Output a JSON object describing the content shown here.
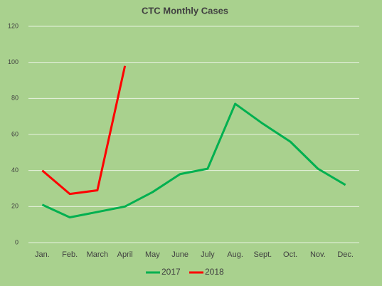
{
  "chart_data": {
    "type": "line",
    "title": "CTC Monthly Cases",
    "categories": [
      "Jan.",
      "Feb.",
      "March",
      "April",
      "May",
      "June",
      "July",
      "Aug.",
      "Sept.",
      "Oct.",
      "Nov.",
      "Dec."
    ],
    "series": [
      {
        "name": "2017",
        "color": "#00b050",
        "values": [
          21,
          14,
          17,
          20,
          28,
          38,
          41,
          77,
          66,
          56,
          41,
          32
        ]
      },
      {
        "name": "2018",
        "color": "#ff0000",
        "values": [
          40,
          27,
          29,
          98,
          null,
          null,
          null,
          null,
          null,
          null,
          null,
          null
        ]
      }
    ],
    "ylim": [
      0,
      120
    ],
    "yticks": [
      0,
      20,
      40,
      60,
      80,
      100,
      120
    ],
    "grid": true,
    "legend": "bottom"
  }
}
